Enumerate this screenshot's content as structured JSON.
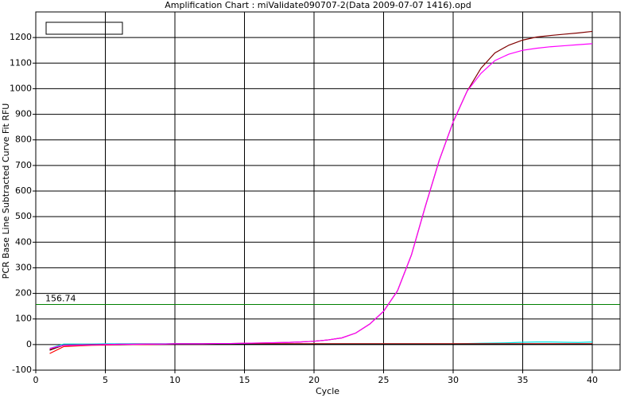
{
  "chart_data": {
    "type": "line",
    "title": "Amplification Chart : miValidate090707-2(Data 2009-07-07 1416).opd",
    "x_label": "Cycle",
    "y_label": "PCR Base Line Subtracted Curve Fit RFU",
    "x": [
      1,
      2,
      3,
      4,
      5,
      6,
      7,
      8,
      9,
      10,
      11,
      12,
      13,
      14,
      15,
      16,
      17,
      18,
      19,
      20,
      21,
      22,
      23,
      24,
      25,
      26,
      27,
      28,
      29,
      30,
      31,
      32,
      33,
      34,
      35,
      36,
      37,
      38,
      39,
      40
    ],
    "series": [
      {
        "color": "#00e0e0",
        "values": [
          -15,
          2,
          2,
          2,
          3,
          3,
          3,
          3,
          3,
          3,
          3,
          3,
          3,
          3,
          3,
          3,
          3,
          3,
          3,
          3,
          3,
          3,
          3,
          3,
          3,
          3,
          3,
          3,
          3,
          3,
          4,
          5,
          6,
          7,
          9,
          10,
          10,
          9,
          8,
          10
        ]
      },
      {
        "color": "#ff0000",
        "values": [
          -35,
          -8,
          -5,
          -3,
          -2,
          -1,
          0,
          0,
          1,
          1,
          1,
          1,
          2,
          2,
          2,
          3,
          3,
          3,
          3,
          3,
          3,
          3,
          3,
          3,
          3,
          3,
          3,
          3,
          3,
          3,
          3,
          3,
          3,
          3,
          3,
          3,
          3,
          3,
          3,
          3
        ]
      },
      {
        "color": "#000000",
        "values": [
          -22,
          -2,
          -1,
          0,
          0,
          0,
          1,
          1,
          1,
          1,
          1,
          1,
          1,
          1,
          1,
          1,
          1,
          1,
          1,
          1,
          1,
          1,
          1,
          1,
          1,
          1,
          1,
          1,
          1,
          1,
          1,
          1,
          1,
          1,
          1,
          1,
          1,
          1,
          1,
          1
        ]
      },
      {
        "color": "#800000",
        "values": [
          -20,
          -3,
          -2,
          -1,
          0,
          1,
          1,
          2,
          2,
          3,
          3,
          3,
          4,
          4,
          5,
          6,
          7,
          8,
          10,
          13,
          18,
          26,
          45,
          80,
          130,
          210,
          350,
          540,
          720,
          870,
          990,
          1080,
          1140,
          1170,
          1190,
          1202,
          1208,
          1213,
          1218,
          1224
        ]
      },
      {
        "color": "#ff00ff",
        "values": [
          -15,
          -3,
          -2,
          -1,
          0,
          1,
          1,
          2,
          2,
          3,
          3,
          3,
          4,
          4,
          5,
          6,
          7,
          8,
          10,
          13,
          18,
          26,
          45,
          80,
          130,
          210,
          350,
          540,
          720,
          870,
          990,
          1060,
          1110,
          1135,
          1150,
          1158,
          1164,
          1168,
          1172,
          1176
        ]
      }
    ],
    "threshold": 156.74,
    "threshold_color": "#008000",
    "xlim": [
      0,
      42
    ],
    "xticks": [
      0,
      5,
      10,
      15,
      20,
      25,
      30,
      35,
      40
    ],
    "ylim": [
      -100,
      1300
    ],
    "yticks": [
      -100,
      0,
      100,
      200,
      300,
      400,
      500,
      600,
      700,
      800,
      900,
      1000,
      1100,
      1200
    ],
    "grid": true
  }
}
